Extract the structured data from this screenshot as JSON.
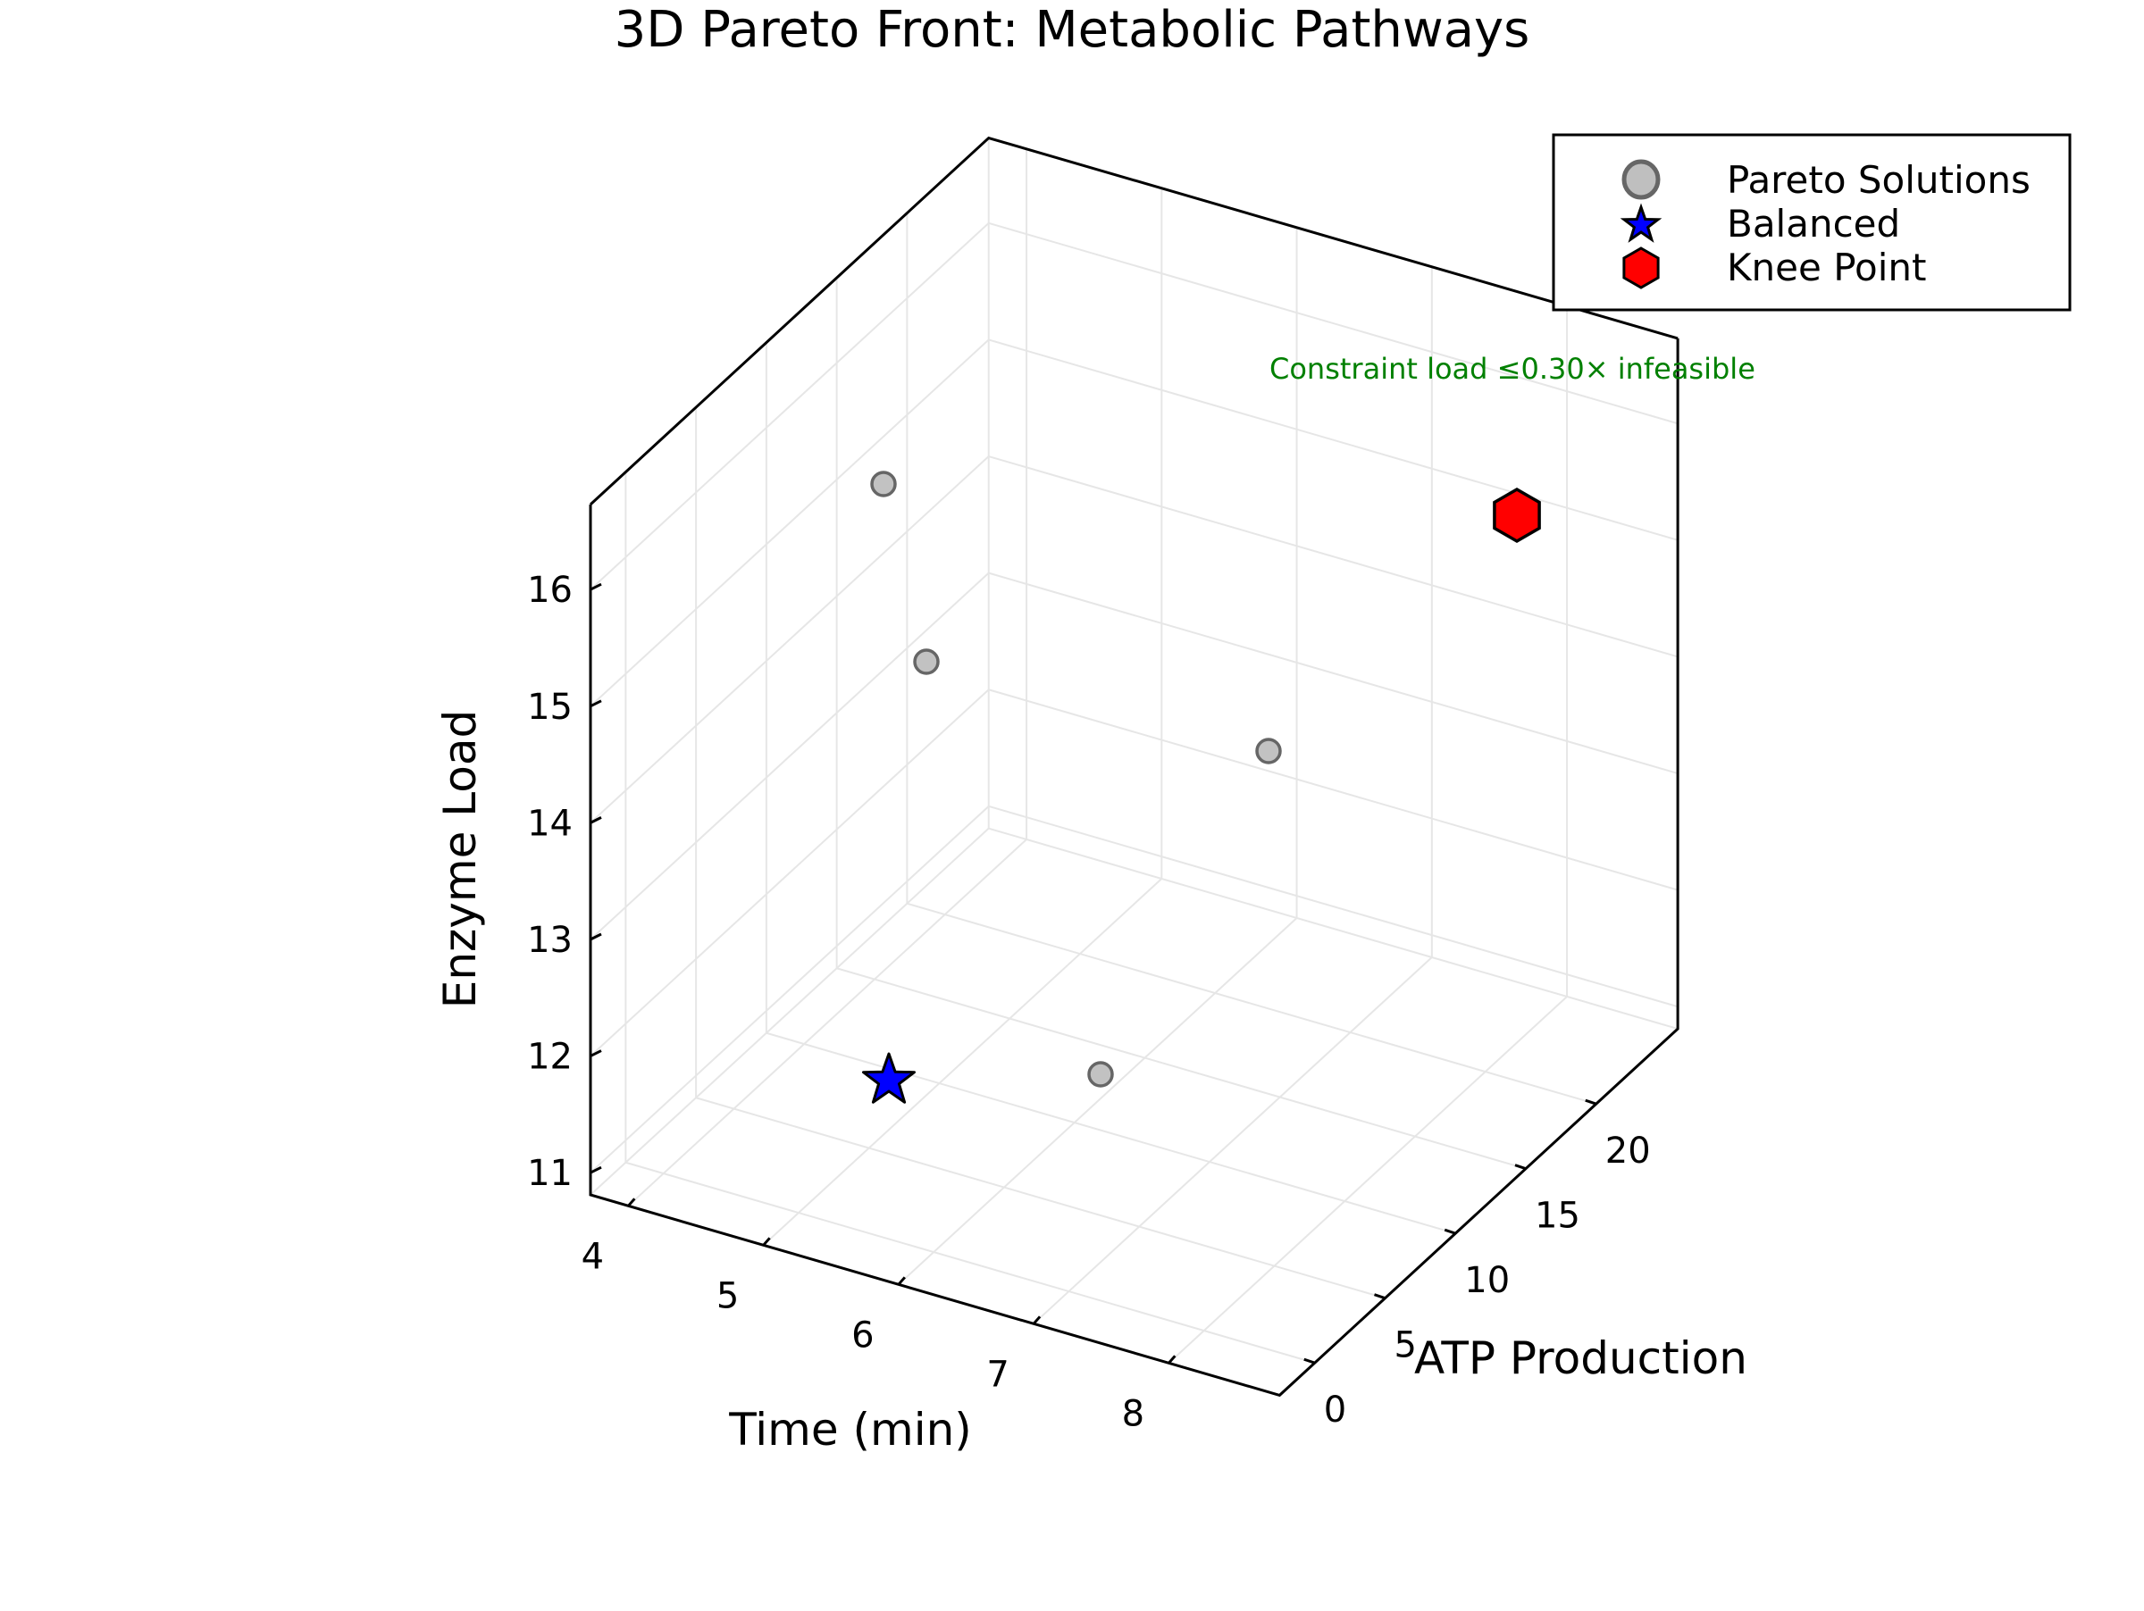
{
  "chart_data": {
    "type": "scatter3d",
    "title": "3D Pareto Front: Metabolic Pathways",
    "xlabel": "Time (min)",
    "ylabel": "ATP Production",
    "zlabel": "Enzyme Load",
    "xlim": [
      3.72,
      8.82
    ],
    "ylim": [
      -2.5,
      25.8
    ],
    "zlim": [
      10.81,
      16.73
    ],
    "x_ticks": [
      4,
      5,
      6,
      7,
      8
    ],
    "y_ticks": [
      0,
      5,
      10,
      15,
      20
    ],
    "z_ticks": [
      11,
      12,
      13,
      14,
      15,
      16
    ],
    "grid": true,
    "legend_position": "upper right",
    "legend": [
      "Pareto Solutions",
      "Balanced",
      "Knee Point"
    ],
    "annotation": "Constraint load ≤0.30× infeasible",
    "series": [
      {
        "name": "Pareto Solutions",
        "marker": "circle",
        "color": "#bfbfbf",
        "edge_color": "#666666",
        "points": [
          {
            "x": 4.6,
            "y": 5.0,
            "z": 16.3
          },
          {
            "x": 4.9,
            "y": 5.5,
            "z": 15.0
          },
          {
            "x": 6.5,
            "y": 12.0,
            "z": 15.4
          },
          {
            "x": 6.5,
            "y": 4.0,
            "z": 12.0
          }
        ]
      },
      {
        "name": "Balanced",
        "marker": "star",
        "color": "#0000ff",
        "edge_color": "#000000",
        "points": [
          {
            "x": 5.5,
            "y": 1.6,
            "z": 11.95
          }
        ]
      },
      {
        "name": "Knee Point",
        "marker": "hexagon",
        "color": "#ff0000",
        "edge_color": "#000000",
        "points": [
          {
            "x": 7.6,
            "y": 17.5,
            "z": 16.6
          }
        ]
      }
    ]
  },
  "render": {
    "screen_points": {
      "pareto": [
        [
          989,
          542
        ],
        [
          1037,
          741
        ],
        [
          1420,
          841
        ],
        [
          1232,
          1203
        ]
      ],
      "balanced": [
        [
          995,
          1207
        ]
      ],
      "knee": [
        [
          1698,
          577
        ]
      ]
    }
  },
  "ui": {
    "title": "3D Pareto Front: Metabolic Pathways",
    "xlabel": "Time (min)",
    "ylabel": "ATP Production",
    "zlabel": "Enzyme Load",
    "annotation": "Constraint load ≤0.30× infeasible",
    "annotation_color": "#008000",
    "legend": {
      "items": [
        {
          "label": "Pareto Solutions"
        },
        {
          "label": "Balanced"
        },
        {
          "label": "Knee Point"
        }
      ]
    },
    "x_tick_labels": [
      "4",
      "5",
      "6",
      "7",
      "8"
    ],
    "y_tick_labels": [
      "0",
      "5",
      "10",
      "15",
      "20"
    ],
    "z_tick_labels": [
      "11",
      "12",
      "13",
      "14",
      "15",
      "16"
    ]
  }
}
